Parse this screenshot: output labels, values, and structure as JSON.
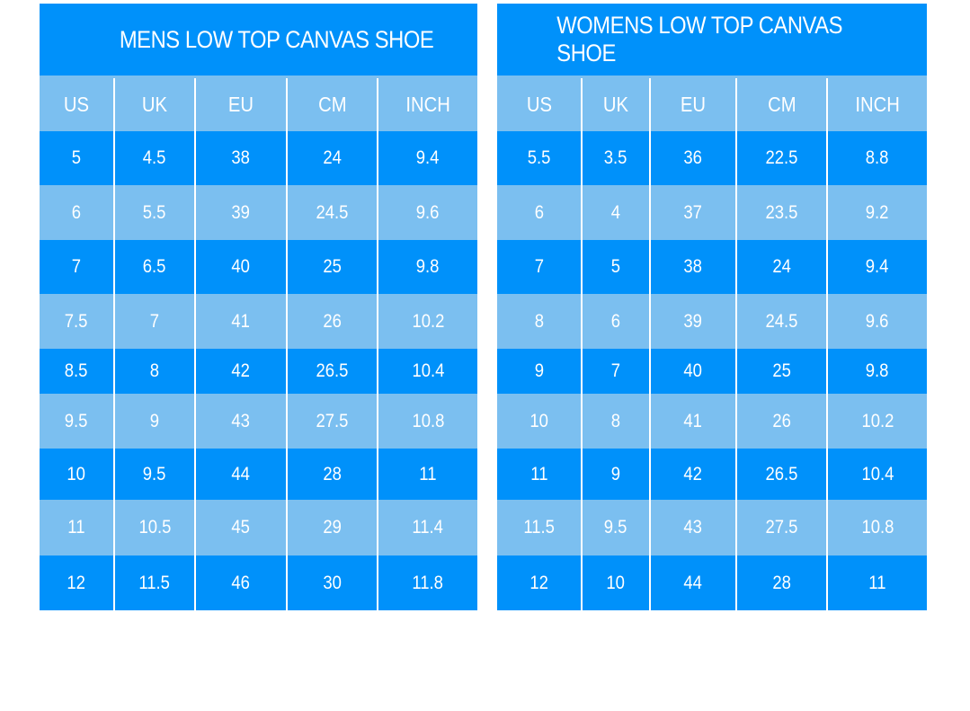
{
  "colors": {
    "dark": "#0091fa",
    "light": "#7bbff0"
  },
  "mens": {
    "title": "MENS LOW TOP CANVAS SHOE",
    "headers": [
      "US",
      "UK",
      "EU",
      "CM",
      "INCH"
    ],
    "rows": [
      [
        "5",
        "4.5",
        "38",
        "24",
        "9.4"
      ],
      [
        "6",
        "5.5",
        "39",
        "24.5",
        "9.6"
      ],
      [
        "7",
        "6.5",
        "40",
        "25",
        "9.8"
      ],
      [
        "7.5",
        "7",
        "41",
        "26",
        "10.2"
      ],
      [
        "8.5",
        "8",
        "42",
        "26.5",
        "10.4"
      ],
      [
        "9.5",
        "9",
        "43",
        "27.5",
        "10.8"
      ],
      [
        "10",
        "9.5",
        "44",
        "28",
        "11"
      ],
      [
        "11",
        "10.5",
        "45",
        "29",
        "11.4"
      ],
      [
        "12",
        "11.5",
        "46",
        "30",
        "11.8"
      ]
    ]
  },
  "womens": {
    "title": "WOMENS LOW TOP CANVAS SHOE",
    "headers": [
      "US",
      "UK",
      "EU",
      "CM",
      "INCH"
    ],
    "rows": [
      [
        "5.5",
        "3.5",
        "36",
        "22.5",
        "8.8"
      ],
      [
        "6",
        "4",
        "37",
        "23.5",
        "9.2"
      ],
      [
        "7",
        "5",
        "38",
        "24",
        "9.4"
      ],
      [
        "8",
        "6",
        "39",
        "24.5",
        "9.6"
      ],
      [
        "9",
        "7",
        "40",
        "25",
        "9.8"
      ],
      [
        "10",
        "8",
        "41",
        "26",
        "10.2"
      ],
      [
        "11",
        "9",
        "42",
        "26.5",
        "10.4"
      ],
      [
        "11.5",
        "9.5",
        "43",
        "27.5",
        "10.8"
      ],
      [
        "12",
        "10",
        "44",
        "28",
        "11"
      ]
    ]
  }
}
